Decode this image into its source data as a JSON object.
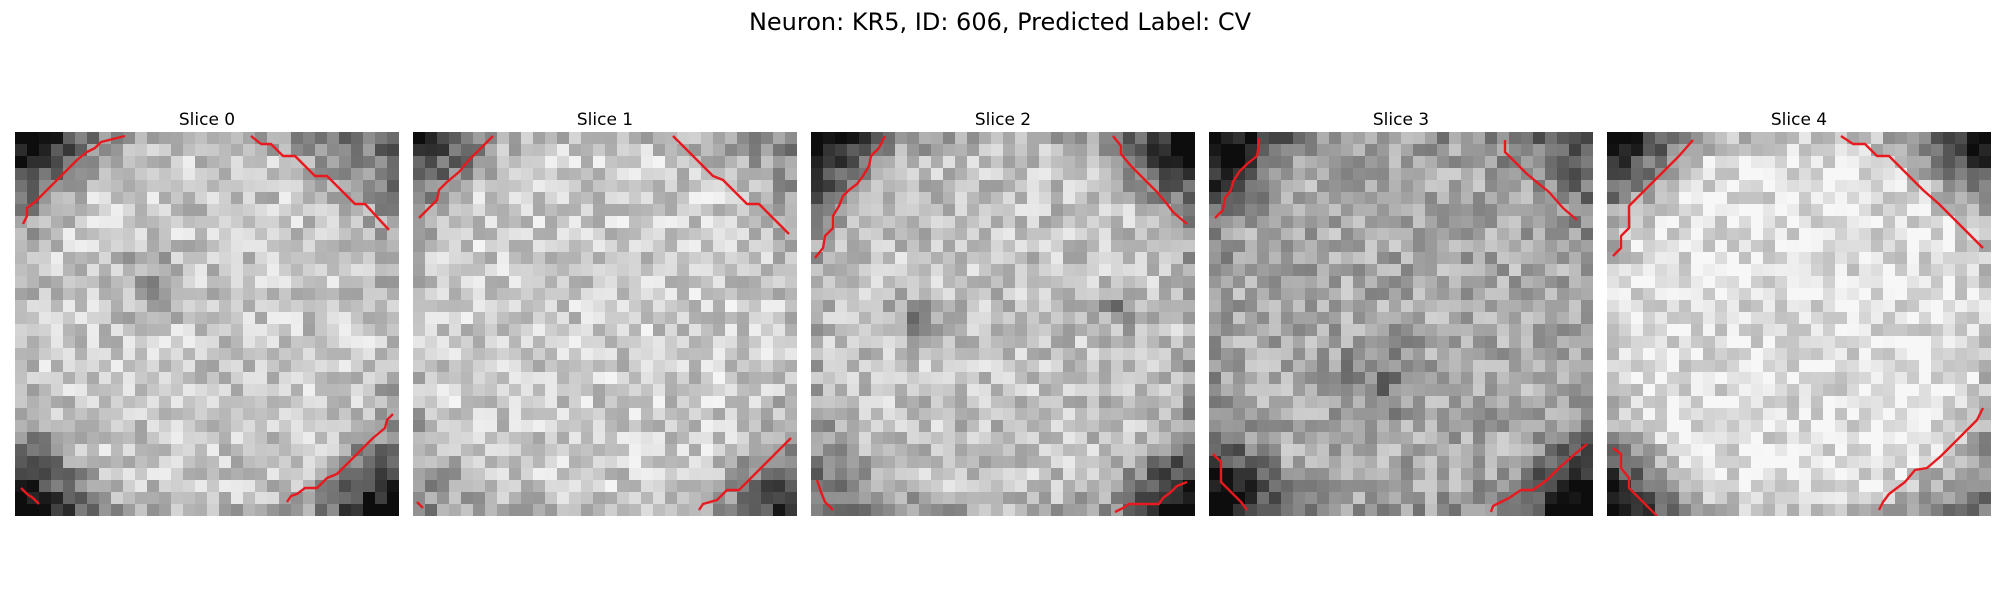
{
  "figure": {
    "title": "Neuron: KR5, ID: 606, Predicted Label: CV"
  },
  "panels": [
    {
      "title": "Slice 0"
    },
    {
      "title": "Slice 1"
    },
    {
      "title": "Slice 2"
    },
    {
      "title": "Slice 3"
    },
    {
      "title": "Slice 4"
    }
  ],
  "colors": {
    "background": "#ffffff",
    "contour": "#e8191f",
    "colormap": "gray"
  }
}
